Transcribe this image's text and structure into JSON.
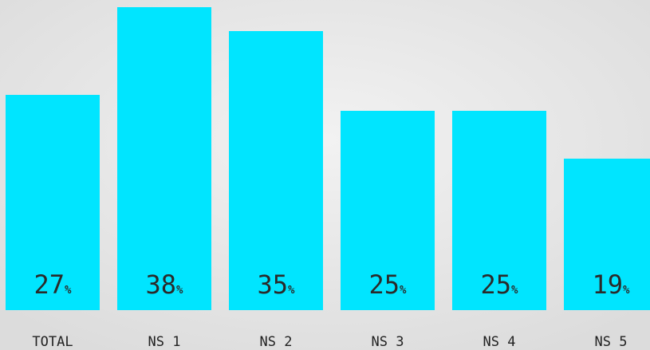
{
  "chart_data": {
    "type": "bar",
    "categories": [
      "TOTAL",
      "NS 1",
      "NS 2",
      "NS 3",
      "NS 4",
      "NS 5"
    ],
    "values": [
      27,
      38,
      35,
      25,
      25,
      19
    ],
    "value_labels": [
      "27%",
      "38%",
      "35%",
      "25%",
      "25%",
      "19%"
    ],
    "color": "#00e5ff"
  }
}
